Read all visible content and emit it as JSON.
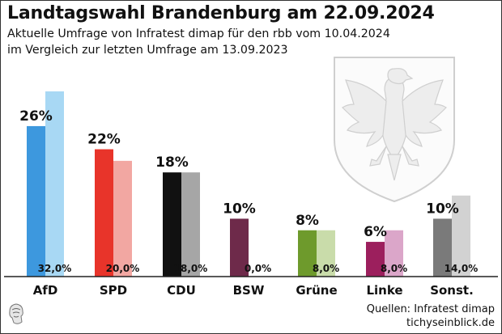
{
  "header": {
    "title": "Landtagswahl Brandenburg am 22.09.2024",
    "subtitle_line1": "Aktuelle Umfrage von Infratest dimap für den rbb vom 10.04.2024",
    "subtitle_line2": "im Vergleich zur letzten Umfrage am 13.09.2023"
  },
  "footer": {
    "source_line1": "Quellen: Infratest dimap",
    "source_line2": "tichyseinblick.de"
  },
  "chart_data": {
    "type": "bar",
    "categories": [
      "AfD",
      "SPD",
      "CDU",
      "BSW",
      "Grüne",
      "Linke",
      "Sonst."
    ],
    "series": [
      {
        "values": [
          26,
          22,
          18,
          10,
          8,
          6,
          10
        ],
        "labels": [
          "26%",
          "22%",
          "18%",
          "10%",
          "8%",
          "6%",
          "10%"
        ],
        "colors": [
          "#3d98de",
          "#e8342a",
          "#111111",
          "#6e2a4a",
          "#6e9a2c",
          "#9c1f5d",
          "#7a7a7a"
        ]
      },
      {
        "values": [
          32,
          20,
          18,
          0,
          8,
          8,
          14
        ],
        "labels": [
          "32,0%",
          "20,0%",
          "18,0%",
          "0,0%",
          "8,0%",
          "8,0%",
          "14,0%"
        ],
        "colors": [
          "#a8d8f4",
          "#f2a7a2",
          "#a6a6a6",
          "#c9a9bd",
          "#c9dcaa",
          "#dba6c9",
          "#d2d2d2"
        ]
      }
    ],
    "ylim": [
      0,
      32
    ],
    "grid": false,
    "legend": "none"
  }
}
